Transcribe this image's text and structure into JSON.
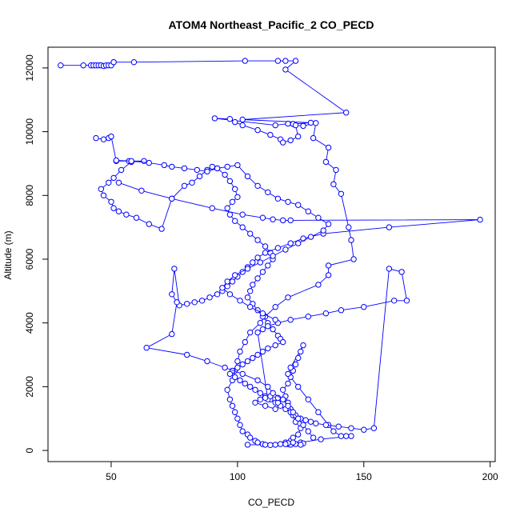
{
  "chart_data": {
    "type": "line",
    "title": "ATOM4 Northeast_Pacific_2 CO_PECD",
    "xlabel": "CO_PECD",
    "ylabel": "Altitude (m)",
    "xlim": [
      25,
      202
    ],
    "ylim": [
      -350,
      12650
    ],
    "xticks": [
      50,
      100,
      150,
      200
    ],
    "yticks": [
      0,
      2000,
      4000,
      6000,
      8000,
      10000,
      12000
    ],
    "grid": false,
    "legend": "none",
    "colors": {
      "series": "#0000ff",
      "frame": "#000000"
    },
    "marker": "open-circle",
    "series": [
      {
        "x": [
          30,
          39,
          42,
          43,
          44,
          45,
          46,
          47,
          48,
          49,
          50,
          51,
          51,
          59,
          103,
          116,
          119,
          123,
          119,
          143,
          102,
          129,
          122,
          120,
          115,
          91,
          97,
          99,
          102,
          108,
          113,
          117,
          118,
          121,
          124,
          123,
          126,
          131,
          130,
          136,
          135,
          139,
          138,
          141,
          144,
          145,
          146,
          136,
          136,
          132,
          120,
          115,
          111,
          109,
          105,
          103,
          101,
          100,
          99,
          98,
          96,
          97,
          98,
          99,
          100,
          101,
          102,
          104,
          105,
          107,
          108,
          110,
          111,
          113,
          115,
          117,
          119,
          121,
          122,
          124,
          125,
          123,
          122,
          121,
          120,
          119,
          118,
          120,
          121,
          122,
          123,
          124,
          125,
          126,
          121,
          120,
          124,
          128,
          132,
          136,
          138,
          141,
          143,
          145,
          133,
          125,
          120,
          121,
          123,
          126,
          122,
          120,
          119,
          125,
          104
        ],
        "y": [
          12080,
          12080,
          12080,
          12080,
          12080,
          12080,
          12080,
          12060,
          12080,
          12080,
          12080,
          12180,
          12180,
          12180,
          12220,
          12220,
          12220,
          12220,
          11950,
          10600,
          10380,
          10280,
          10240,
          10250,
          10200,
          10420,
          10400,
          10300,
          10200,
          10050,
          9900,
          9760,
          9660,
          9730,
          9850,
          10200,
          10180,
          10270,
          9800,
          9500,
          9050,
          8800,
          8350,
          8050,
          7000,
          6600,
          6000,
          5800,
          5500,
          5200,
          4800,
          4500,
          4200,
          4000,
          3700,
          3400,
          3100,
          2800,
          2500,
          2200,
          1900,
          1600,
          1400,
          1200,
          1000,
          800,
          600,
          500,
          400,
          300,
          250,
          200,
          180,
          170,
          180,
          200,
          250,
          300,
          400,
          500,
          700,
          900,
          1100,
          1300,
          1500,
          1700,
          1900,
          2100,
          2300,
          2500,
          2700,
          2900,
          3100,
          3300,
          2600,
          2400,
          2000,
          1600,
          1200,
          800,
          600,
          450,
          450,
          450,
          350,
          250,
          200,
          180,
          200,
          220,
          250,
          230,
          200,
          180,
          180
        ]
      },
      {
        "x": [
          44,
          47,
          49,
          50,
          52,
          57,
          63,
          58,
          54,
          51,
          49,
          46,
          47,
          50,
          51,
          53,
          56,
          60,
          65,
          70,
          74,
          79,
          82,
          85,
          88,
          90,
          92,
          95,
          97,
          99,
          100,
          98,
          96,
          97,
          99,
          102,
          105,
          108,
          111,
          113,
          114,
          112,
          110,
          108,
          106,
          105,
          104,
          106,
          108,
          110,
          112,
          114,
          116,
          117,
          118,
          115,
          112,
          110,
          108,
          106,
          104,
          102,
          100,
          98,
          97,
          99,
          101,
          103,
          105,
          107,
          109,
          111,
          113,
          115,
          117,
          119,
          121,
          123,
          125,
          127,
          129,
          131,
          135,
          140,
          145,
          150,
          154,
          160,
          165,
          167,
          162,
          150,
          141,
          135,
          128,
          121,
          116,
          112,
          110,
          108,
          112,
          116,
          118,
          116,
          113,
          111,
          109,
          107,
          111,
          115
        ],
        "y": [
          9800,
          9760,
          9800,
          9850,
          9080,
          9080,
          9080,
          9050,
          8800,
          8550,
          8400,
          8200,
          8000,
          7800,
          7600,
          7500,
          7400,
          7300,
          7100,
          6950,
          7900,
          8300,
          8400,
          8600,
          8800,
          8900,
          8850,
          8650,
          8450,
          8200,
          7950,
          7800,
          7600,
          7400,
          7200,
          7000,
          6800,
          6600,
          6400,
          6200,
          6000,
          5800,
          5600,
          5400,
          5200,
          5000,
          4800,
          4600,
          4400,
          4200,
          4000,
          3800,
          3600,
          3500,
          3400,
          3300,
          3200,
          3100,
          3000,
          2900,
          2800,
          2700,
          2600,
          2500,
          2400,
          2300,
          2200,
          2100,
          2000,
          1900,
          1800,
          1700,
          1600,
          1500,
          1400,
          1300,
          1200,
          1100,
          1000,
          950,
          900,
          850,
          800,
          750,
          700,
          650,
          700,
          5700,
          5600,
          4700,
          4700,
          4500,
          4400,
          4300,
          4200,
          4100,
          4000,
          3900,
          3800,
          3700,
          1600,
          1500,
          1600,
          1650,
          1700,
          1650,
          1600,
          1500,
          1400,
          1300
        ]
      },
      {
        "x": [
          53,
          62,
          74,
          90,
          102,
          110,
          114,
          118,
          121,
          196,
          160,
          134,
          126,
          121,
          116,
          111,
          108,
          106,
          104,
          102,
          100,
          98,
          96,
          94,
          92,
          89,
          86,
          83,
          80,
          77,
          75,
          74,
          76,
          74,
          64,
          80,
          88,
          95,
          102,
          108,
          112,
          114,
          118,
          120,
          122,
          124,
          126,
          128,
          130
        ],
        "y": [
          8400,
          8150,
          7900,
          7600,
          7400,
          7300,
          7250,
          7220,
          7220,
          7240,
          7000,
          6800,
          6650,
          6500,
          6350,
          6200,
          6050,
          5900,
          5750,
          5600,
          5450,
          5300,
          5150,
          5000,
          4900,
          4800,
          4700,
          4650,
          4600,
          4550,
          5700,
          4900,
          4650,
          3650,
          3220,
          3000,
          2800,
          2600,
          2400,
          2200,
          2000,
          1800,
          1600,
          1400,
          1200,
          1000,
          800,
          600,
          400
        ]
      },
      {
        "x": [
          52,
          58,
          65,
          71,
          74,
          79,
          84,
          88,
          92,
          96,
          100,
          104,
          108,
          112,
          116,
          120,
          124,
          128,
          132,
          136,
          134,
          129,
          124,
          119,
          114,
          109,
          104,
          99,
          96,
          94,
          97,
          101,
          105,
          110,
          115
        ],
        "y": [
          9100,
          9080,
          9020,
          8950,
          8900,
          8850,
          8800,
          8750,
          8850,
          8900,
          8950,
          8600,
          8300,
          8100,
          7900,
          7800,
          7700,
          7500,
          7300,
          7100,
          6900,
          6700,
          6500,
          6300,
          6100,
          5900,
          5700,
          5500,
          5300,
          5100,
          4900,
          4700,
          4500,
          4300,
          4100
        ]
      }
    ]
  }
}
